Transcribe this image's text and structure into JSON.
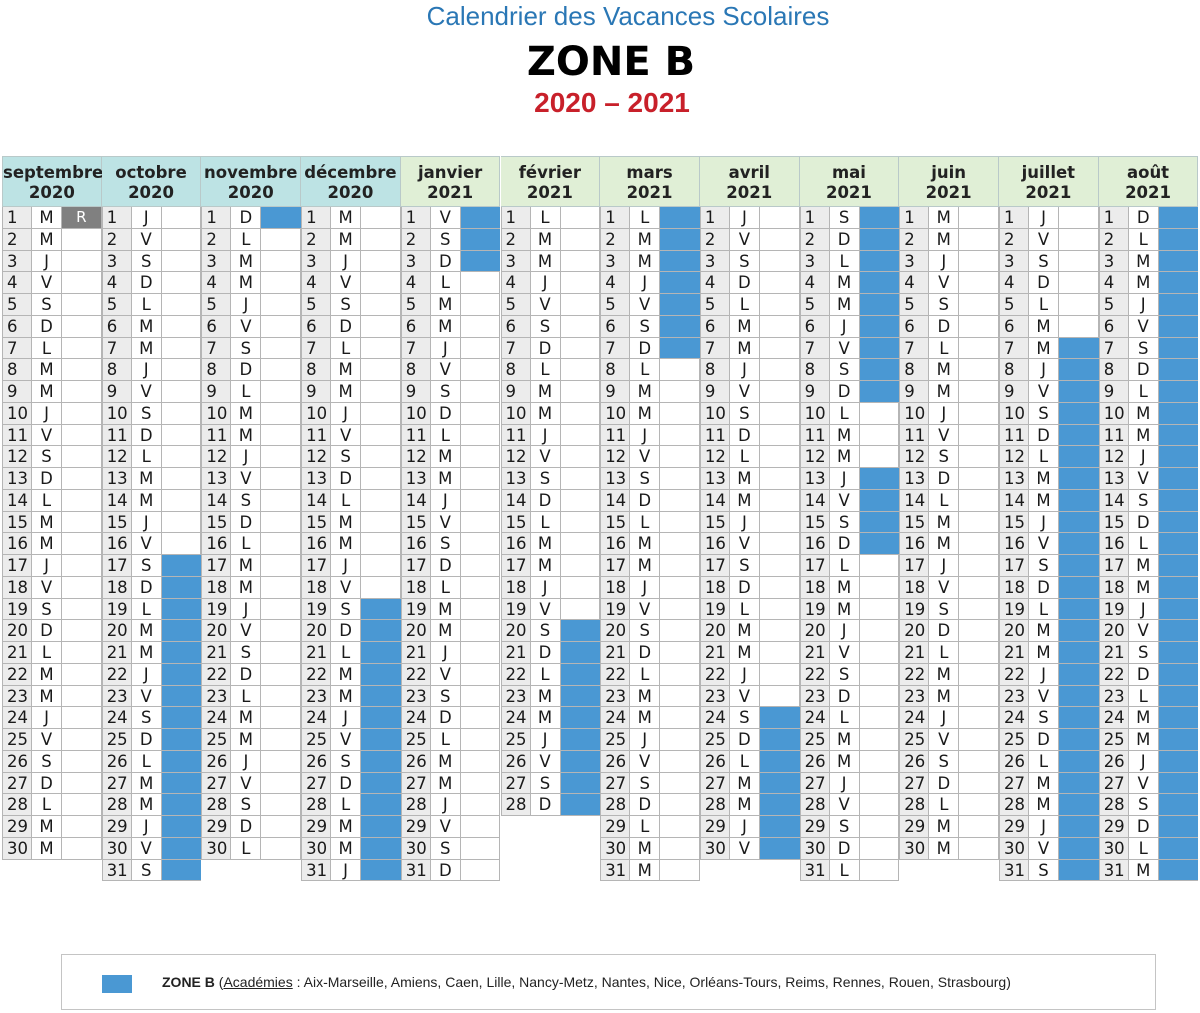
{
  "header": {
    "subtitle": "Calendrier des Vacances Scolaires",
    "zone": "ZONE B",
    "school_year": "2020 – 2021"
  },
  "colors": {
    "vacation": "#4a98d3",
    "rentree": "#808080",
    "header_2020": "#bde3e4",
    "header_2021": "#e0efd6"
  },
  "months": [
    {
      "name": "septembre",
      "year": "2020",
      "first_weekday": 2,
      "days": 30,
      "vacation": [],
      "marks": {
        "1": "R"
      }
    },
    {
      "name": "octobre",
      "year": "2020",
      "first_weekday": 4,
      "days": 31,
      "vacation": [
        [
          17,
          31
        ]
      ],
      "marks": {}
    },
    {
      "name": "novembre",
      "year": "2020",
      "first_weekday": 0,
      "days": 30,
      "vacation": [
        [
          1,
          1
        ]
      ],
      "marks": {}
    },
    {
      "name": "décembre",
      "year": "2020",
      "first_weekday": 2,
      "days": 31,
      "vacation": [
        [
          19,
          31
        ]
      ],
      "marks": {}
    },
    {
      "name": "janvier",
      "year": "2021",
      "first_weekday": 5,
      "days": 31,
      "vacation": [
        [
          1,
          3
        ]
      ],
      "marks": {}
    },
    {
      "name": "février",
      "year": "2021",
      "first_weekday": 1,
      "days": 28,
      "vacation": [
        [
          20,
          28
        ]
      ],
      "marks": {}
    },
    {
      "name": "mars",
      "year": "2021",
      "first_weekday": 1,
      "days": 31,
      "vacation": [
        [
          1,
          7
        ]
      ],
      "marks": {}
    },
    {
      "name": "avril",
      "year": "2021",
      "first_weekday": 4,
      "days": 30,
      "vacation": [
        [
          24,
          30
        ]
      ],
      "marks": {}
    },
    {
      "name": "mai",
      "year": "2021",
      "first_weekday": 6,
      "days": 31,
      "vacation": [
        [
          1,
          9
        ],
        [
          13,
          16
        ]
      ],
      "marks": {}
    },
    {
      "name": "juin",
      "year": "2021",
      "first_weekday": 2,
      "days": 30,
      "vacation": [],
      "marks": {}
    },
    {
      "name": "juillet",
      "year": "2021",
      "first_weekday": 4,
      "days": 31,
      "vacation": [
        [
          7,
          31
        ]
      ],
      "marks": {}
    },
    {
      "name": "août",
      "year": "2021",
      "first_weekday": 0,
      "days": 31,
      "vacation": [
        [
          1,
          31
        ]
      ],
      "marks": {}
    }
  ],
  "weekday_letters": [
    "D",
    "L",
    "M",
    "M",
    "J",
    "V",
    "S"
  ],
  "legend": {
    "zone": "ZONE B",
    "open_paren": " (",
    "academies_label": "Académies",
    "academies_list": " : Aix-Marseille, Amiens, Caen, Lille, Nancy-Metz, Nantes, Nice, Orléans-Tours, Reims, Rennes, Rouen, Strasbourg)"
  }
}
